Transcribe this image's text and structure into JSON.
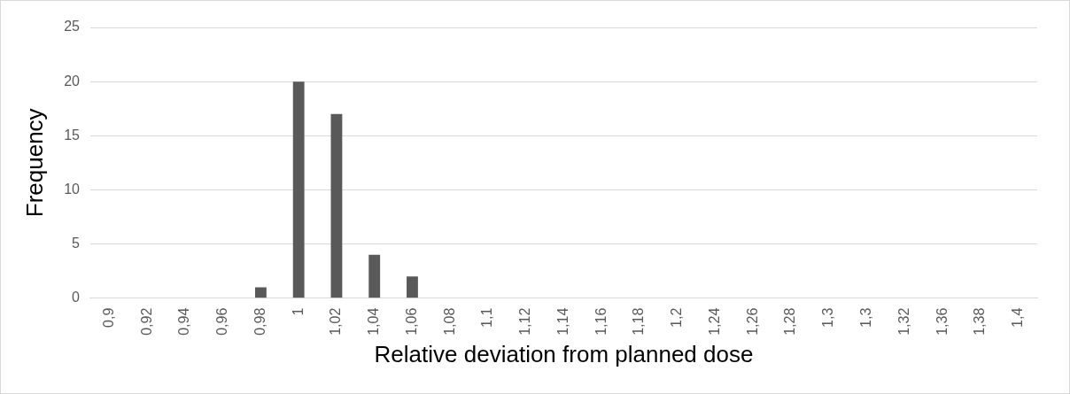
{
  "chart_data": {
    "type": "bar",
    "xlabel": "Relative deviation from planned dose",
    "ylabel": "Frequency",
    "categories": [
      "0,9",
      "0,92",
      "0,94",
      "0,96",
      "0,98",
      "1",
      "1,02",
      "1,04",
      "1,06",
      "1,08",
      "1,1",
      "1,12",
      "1,14",
      "1,16",
      "1,18",
      "1,2",
      "1,24",
      "1,26",
      "1,28",
      "1,3",
      "1,3",
      "1,32",
      "1,36",
      "1,38",
      "1,4"
    ],
    "values": [
      0,
      0,
      0,
      0,
      1,
      20,
      17,
      4,
      2,
      0,
      0,
      0,
      0,
      0,
      0,
      0,
      0,
      0,
      0,
      0,
      0,
      0,
      0,
      0,
      0
    ],
    "color": "#595959",
    "ylim": [
      0,
      25
    ],
    "yticks": [
      0,
      5,
      10,
      15,
      20,
      25
    ],
    "grid": "y",
    "legend": false
  }
}
